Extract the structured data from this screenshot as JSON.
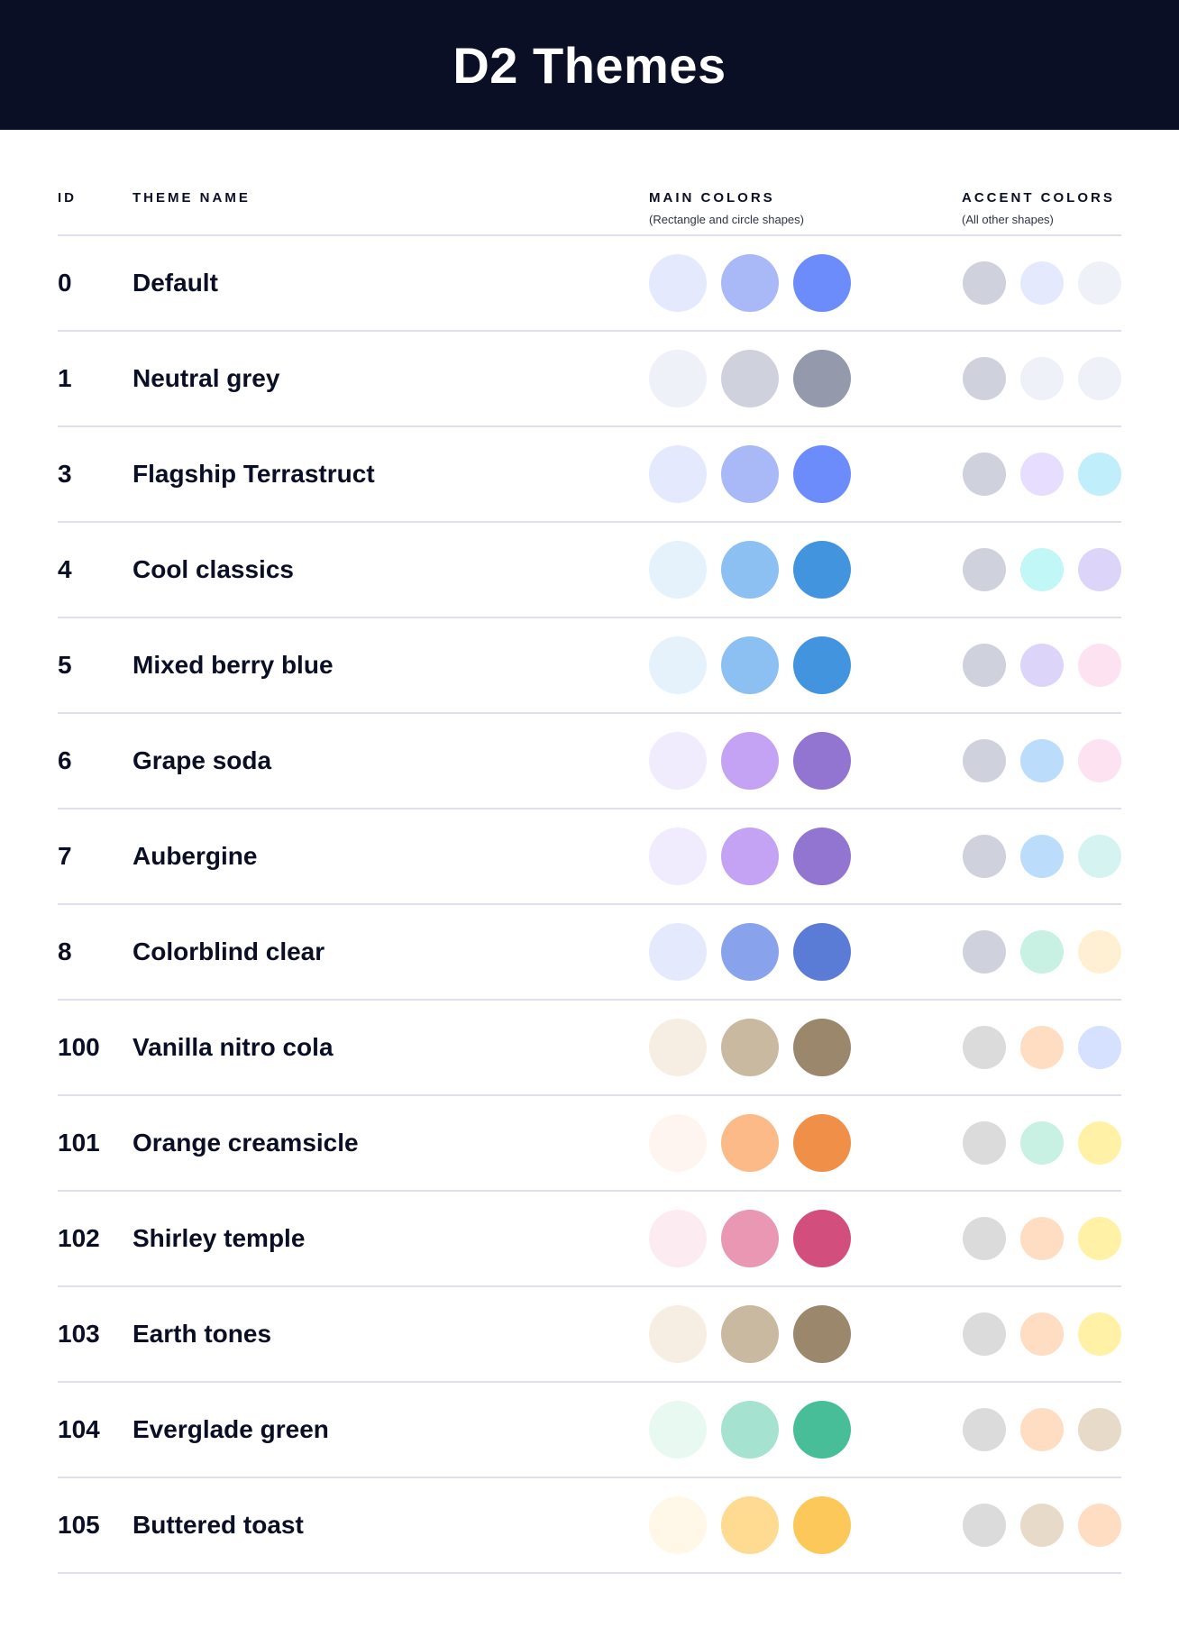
{
  "title": "D2 Themes",
  "columns": {
    "id": "ID",
    "name": "THEME NAME",
    "main": "MAIN COLORS",
    "main_sub": "(Rectangle and circle shapes)",
    "accent": "ACCENT COLORS",
    "accent_sub": "(All other shapes)"
  },
  "themes": [
    {
      "id": "0",
      "name": "Default",
      "main": [
        "#E5E9FD",
        "#A9B8F7",
        "#6D8CFC"
      ],
      "accent": [
        "#CFD2DD",
        "#E5E9FD",
        "#EEF1F8"
      ]
    },
    {
      "id": "1",
      "name": "Neutral grey",
      "main": [
        "#EEF1F8",
        "#CFD2DD",
        "#9499AB"
      ],
      "accent": [
        "#CFD2DD",
        "#EEF1F8",
        "#EEF1F8"
      ]
    },
    {
      "id": "3",
      "name": "Flagship Terrastruct",
      "main": [
        "#E5E9FD",
        "#A9B8F7",
        "#6D8CFC"
      ],
      "accent": [
        "#CFD2DD",
        "#E7DEFF",
        "#C1EEFB"
      ]
    },
    {
      "id": "4",
      "name": "Cool classics",
      "main": [
        "#E5F2FC",
        "#8CC0F3",
        "#4394DE"
      ],
      "accent": [
        "#CFD2DD",
        "#C1F8F7",
        "#DDD4F9"
      ]
    },
    {
      "id": "5",
      "name": "Mixed berry blue",
      "main": [
        "#E5F2FC",
        "#8CC0F3",
        "#4394DE"
      ],
      "accent": [
        "#CFD2DD",
        "#DDD4F9",
        "#FDE2F1"
      ]
    },
    {
      "id": "6",
      "name": "Grape soda",
      "main": [
        "#F0ECFD",
        "#C4A3F4",
        "#9274D1"
      ],
      "accent": [
        "#CFD2DD",
        "#BCDCFB",
        "#FDE2F1"
      ]
    },
    {
      "id": "7",
      "name": "Aubergine",
      "main": [
        "#F0ECFD",
        "#C4A3F4",
        "#9274D1"
      ],
      "accent": [
        "#CFD2DD",
        "#BCDCFB",
        "#D4F3F1"
      ]
    },
    {
      "id": "8",
      "name": "Colorblind clear",
      "main": [
        "#E5E9FD",
        "#88A3EC",
        "#5A7BD6"
      ],
      "accent": [
        "#CFD2DD",
        "#C9F1E3",
        "#FFF0D4"
      ]
    },
    {
      "id": "100",
      "name": "Vanilla nitro cola",
      "main": [
        "#F7EEE3",
        "#C9B9A0",
        "#9A876C"
      ],
      "accent": [
        "#DCDBDB",
        "#FFDDC2",
        "#D6E1FF"
      ]
    },
    {
      "id": "101",
      "name": "Orange creamsicle",
      "main": [
        "#FFF5F0",
        "#FBBA87",
        "#F08F48"
      ],
      "accent": [
        "#DCDBDB",
        "#C9F1E3",
        "#FFF2A6"
      ]
    },
    {
      "id": "102",
      "name": "Shirley temple",
      "main": [
        "#FCECF2",
        "#E997B2",
        "#D24F7D"
      ],
      "accent": [
        "#DCDBDB",
        "#FFDDC2",
        "#FFF2A6"
      ]
    },
    {
      "id": "103",
      "name": "Earth tones",
      "main": [
        "#F7EEE3",
        "#C9B9A0",
        "#9A876C"
      ],
      "accent": [
        "#DCDBDB",
        "#FFDDC2",
        "#FFF2A6"
      ]
    },
    {
      "id": "104",
      "name": "Everglade green",
      "main": [
        "#E8F9F2",
        "#A5E2D0",
        "#47BD98"
      ],
      "accent": [
        "#DCDBDB",
        "#FFDDC2",
        "#E8DAC8"
      ]
    },
    {
      "id": "105",
      "name": "Buttered toast",
      "main": [
        "#FFF7E8",
        "#FFDA91",
        "#FCC85A"
      ],
      "accent": [
        "#DCDBDB",
        "#E8DAC8",
        "#FFDDC2"
      ]
    }
  ]
}
